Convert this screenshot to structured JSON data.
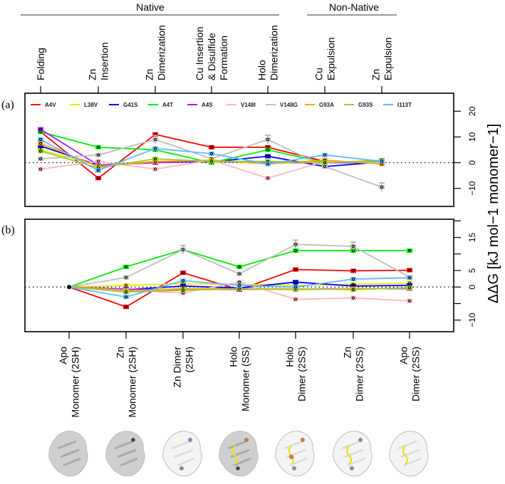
{
  "chart_data": [
    {
      "type": "line",
      "panel_label": "(a)",
      "group_headers": [
        {
          "label": "Native",
          "span": [
            "Folding",
            "Holo Dimerization"
          ]
        },
        {
          "label": "Non-Native",
          "span": [
            "Cu Expulsion",
            "Zn Expulsion"
          ]
        }
      ],
      "categories": [
        [
          "Folding"
        ],
        [
          "Zn",
          "Insertion"
        ],
        [
          "Zn",
          "Dimerization"
        ],
        [
          "Cu Insertion",
          "& Disulfide",
          "Formation"
        ],
        [
          "Holo",
          "Dimerization"
        ],
        [
          "Cu",
          "Expulsion"
        ],
        [
          "Zn",
          "Expulsion"
        ]
      ],
      "ylabel": "ΔΔG [kJ mol−1 monomer−1]",
      "ylim": [
        -17,
        27
      ],
      "yticks": [
        -10,
        0,
        10,
        20
      ],
      "reference_line": 0,
      "legend_position": "top",
      "series": [
        {
          "name": "A4V",
          "color": "#ff0000",
          "values": [
            12,
            -6,
            11,
            6,
            6,
            0.5,
            0
          ]
        },
        {
          "name": "L38V",
          "color": "#e8e800",
          "values": [
            5,
            -1,
            0.5,
            0.5,
            0.5,
            0.5,
            0
          ]
        },
        {
          "name": "G41S",
          "color": "#0000ff",
          "values": [
            6.5,
            -1,
            0.2,
            0.3,
            2.5,
            -1.5,
            0.3
          ]
        },
        {
          "name": "A4T",
          "color": "#00ee00",
          "values": [
            12,
            6,
            5,
            0,
            5,
            0,
            0.5
          ]
        },
        {
          "name": "A4S",
          "color": "#a020f0",
          "values": [
            13,
            -1,
            0,
            0.5,
            0,
            0,
            0
          ]
        },
        {
          "name": "V148I",
          "color": "#ffb6c1",
          "values": [
            -2.5,
            0.5,
            -2.5,
            1,
            -6,
            0.5,
            0
          ]
        },
        {
          "name": "V148G",
          "color": "#bebebe",
          "values": [
            1.5,
            3,
            9,
            1.5,
            9,
            -1.5,
            -9.5
          ]
        },
        {
          "name": "G93A",
          "color": "#ffa500",
          "values": [
            7.5,
            -1.5,
            0.5,
            1,
            -0.5,
            1,
            -0.5
          ]
        },
        {
          "name": "G93S",
          "color": "#9acd32",
          "values": [
            4.5,
            -2,
            1.5,
            0.5,
            0.5,
            0,
            1
          ]
        },
        {
          "name": "I113T",
          "color": "#63b8ff",
          "values": [
            9,
            -3,
            5.5,
            3.5,
            -0.5,
            3,
            0.5
          ]
        }
      ]
    },
    {
      "type": "line",
      "panel_label": "(b)",
      "categories": [
        [
          "Apo",
          "Monomer (2SH)"
        ],
        [
          "Zn",
          "Monomer (2SH)"
        ],
        [
          "Zn Dimer",
          "(2SH)"
        ],
        [
          "Holo",
          "Monomer (SS)"
        ],
        [
          "Holo",
          "Dimer (2SS)"
        ],
        [
          "Zn",
          "Dimer (2SS)"
        ],
        [
          "Apo",
          "Dimer (2SS)"
        ]
      ],
      "ylim": [
        -13.5,
        20.5
      ],
      "yticks": [
        -10,
        -5,
        0,
        5,
        10,
        15,
        20
      ],
      "ytick_labels": [
        "-10",
        "",
        "0",
        "5",
        "",
        "15",
        ""
      ],
      "reference_line": 0,
      "series": [
        {
          "name": "A4V",
          "color": "#ff0000",
          "values": [
            0,
            -6,
            4.3,
            -0.8,
            5.3,
            4.9,
            5.1
          ]
        },
        {
          "name": "L38V",
          "color": "#e8e800",
          "values": [
            0,
            0.5,
            1,
            0.8,
            0.5,
            0.8,
            1.2
          ]
        },
        {
          "name": "G41S",
          "color": "#0000ff",
          "values": [
            0,
            -0.8,
            0.3,
            -0.3,
            1.5,
            0.3,
            0.5
          ]
        },
        {
          "name": "A4T",
          "color": "#00ee00",
          "values": [
            0,
            6.1,
            11.3,
            6.1,
            11,
            11,
            11
          ]
        },
        {
          "name": "A4S",
          "color": "#a020f0",
          "values": [
            0,
            -0.6,
            -0.8,
            -0.7,
            -0.6,
            -0.5,
            -0.5
          ]
        },
        {
          "name": "V148I",
          "color": "#ffb6c1",
          "values": [
            0,
            -1,
            -1.8,
            1.5,
            -3.7,
            -3.3,
            -4.2
          ]
        },
        {
          "name": "V148G",
          "color": "#bebebe",
          "values": [
            0,
            2.9,
            11.3,
            4,
            12.9,
            12.3,
            3
          ]
        },
        {
          "name": "G93A",
          "color": "#ffa500",
          "values": [
            0,
            -1.2,
            -0.5,
            -0.5,
            -0.8,
            -0.5,
            -0.3
          ]
        },
        {
          "name": "G93S",
          "color": "#9acd32",
          "values": [
            0,
            -1.5,
            -1,
            -0.5,
            -0.5,
            -0.8,
            -0.2
          ]
        },
        {
          "name": "I113T",
          "color": "#63b8ff",
          "values": [
            0,
            -3,
            1.9,
            0.5,
            0,
            2.4,
            2.8
          ]
        }
      ]
    }
  ]
}
